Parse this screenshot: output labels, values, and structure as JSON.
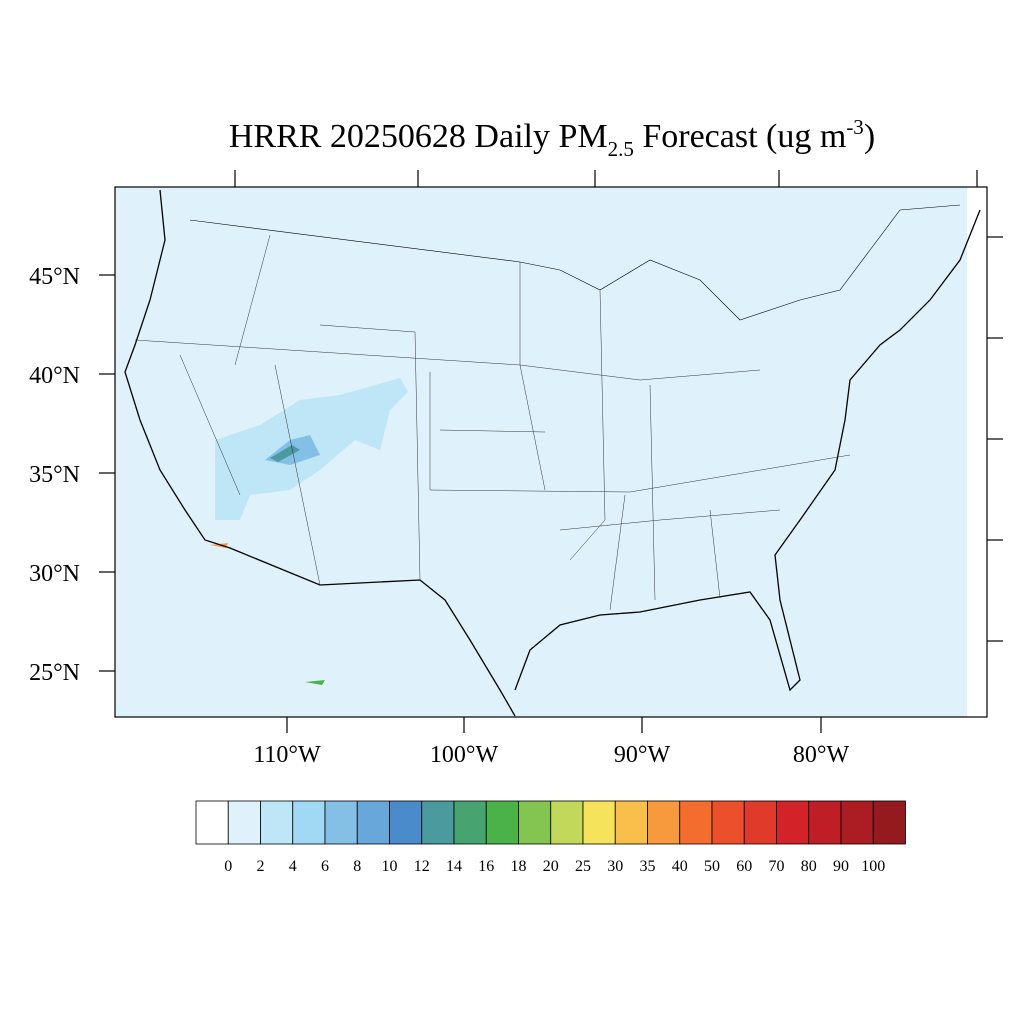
{
  "title": {
    "main": "HRRR 20250628 Daily PM",
    "sub": "2.5",
    "rest": " Forecast (ug m",
    "sup": "-3",
    "end": ")"
  },
  "map": {
    "lat_labels": [
      "45°N",
      "40°N",
      "35°N",
      "30°N",
      "25°N"
    ],
    "lon_labels": [
      "110°W",
      "100°W",
      "90°W",
      "80°W"
    ]
  },
  "colorbar": {
    "levels": [
      0,
      2,
      4,
      6,
      8,
      10,
      12,
      14,
      16,
      18,
      20,
      25,
      30,
      35,
      40,
      50,
      60,
      70,
      80,
      90,
      100
    ],
    "colors": [
      "#ffffff",
      "#dff2fb",
      "#bfe6f7",
      "#a1d8f3",
      "#84bfe6",
      "#68a7d9",
      "#4a8ccb",
      "#4a9a9e",
      "#47a36f",
      "#4bb24a",
      "#84c450",
      "#c2d85a",
      "#f6e35c",
      "#f8c04a",
      "#f79a3e",
      "#f36d2f",
      "#eb4f2c",
      "#e03a2a",
      "#d42229",
      "#c01e27",
      "#ab1c23",
      "#941a1e"
    ]
  }
}
